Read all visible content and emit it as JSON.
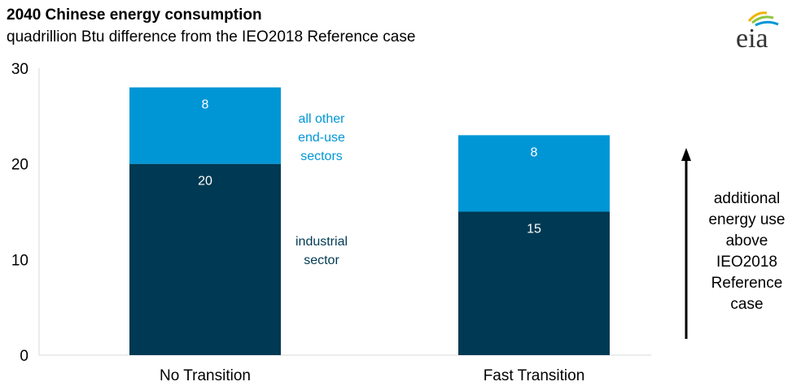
{
  "header": {
    "title": "2040 Chinese energy consumption",
    "subtitle": "quadrillion Btu difference from the IEO2018 Reference case"
  },
  "logo": {
    "text": "eia",
    "icon": "eia-logo",
    "colors": [
      "#f0b400",
      "#8dc63f",
      "#0096d6"
    ]
  },
  "annotations": {
    "other_sectors": [
      "all other",
      "end-use",
      "sectors"
    ],
    "industrial": [
      "industrial",
      "sector"
    ],
    "side_note": [
      "additional",
      "energy use",
      "above",
      "IEO2018",
      "Reference",
      "case"
    ]
  },
  "chart_data": {
    "type": "bar",
    "stacked": true,
    "categories": [
      "No Transition",
      "Fast Transition"
    ],
    "series": [
      {
        "name": "industrial sector",
        "values": [
          20,
          15
        ],
        "color": "#003953",
        "labels": [
          "20",
          "15"
        ]
      },
      {
        "name": "all other end-use sectors",
        "values": [
          8,
          8
        ],
        "color": "#0096d6",
        "labels": [
          "8",
          "8"
        ]
      }
    ],
    "ylim": [
      0,
      30
    ],
    "yticks": [
      0,
      10,
      20,
      30
    ],
    "grid": false,
    "xlabel": "",
    "ylabel": ""
  }
}
